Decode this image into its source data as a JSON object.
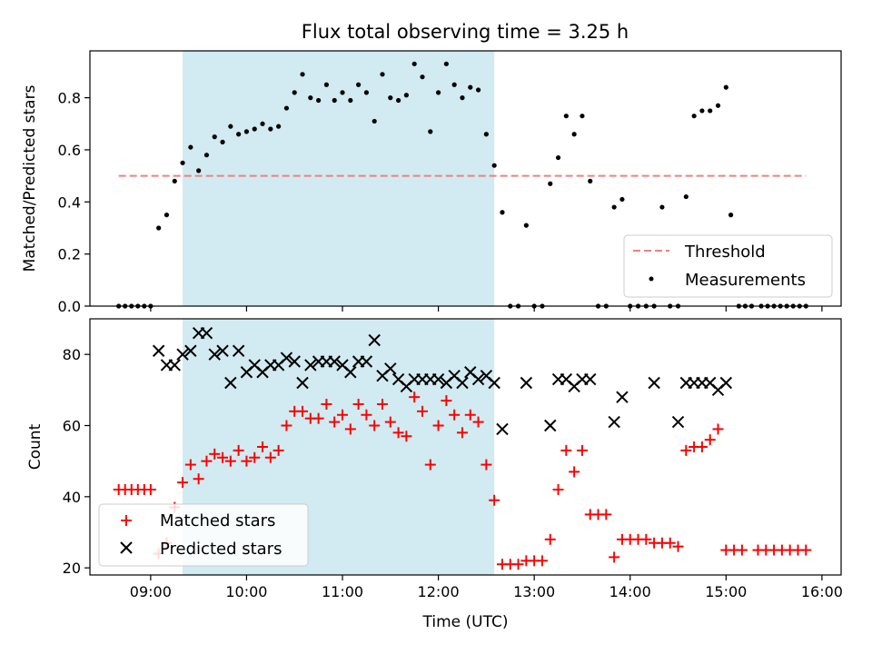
{
  "chart_data": [
    {
      "type": "scatter",
      "title": "Flux total observing time = 3.25 h",
      "ylabel": "Matched/Predicted stars",
      "xlabel": "",
      "xlim": [
        "08:22",
        "16:12"
      ],
      "ylim": [
        0,
        0.98
      ],
      "grid": false,
      "legend_position": "lower-right",
      "xticks": [
        "09:00",
        "10:00",
        "11:00",
        "12:00",
        "13:00",
        "14:00",
        "15:00",
        "16:00"
      ],
      "yticks": [
        "0.0",
        "0.2",
        "0.4",
        "0.6",
        "0.8"
      ],
      "shaded_span": {
        "start": "09:20",
        "end": "12:35",
        "color": "#add8e6"
      },
      "threshold": {
        "name": "Threshold",
        "value": 0.5,
        "start": "08:40",
        "end": "15:50",
        "color": "#f08080",
        "style": "dashed"
      },
      "series": [
        {
          "name": "Measurements",
          "color": "#000000",
          "marker": "dot",
          "points": [
            [
              "08:40",
              0
            ],
            [
              "08:44",
              0
            ],
            [
              "08:48",
              0
            ],
            [
              "08:52",
              0
            ],
            [
              "08:56",
              0
            ],
            [
              "09:00",
              0
            ],
            [
              "09:05",
              0.3
            ],
            [
              "09:10",
              0.35
            ],
            [
              "09:15",
              0.48
            ],
            [
              "09:20",
              0.55
            ],
            [
              "09:25",
              0.61
            ],
            [
              "09:30",
              0.52
            ],
            [
              "09:35",
              0.58
            ],
            [
              "09:40",
              0.65
            ],
            [
              "09:45",
              0.63
            ],
            [
              "09:50",
              0.69
            ],
            [
              "09:55",
              0.66
            ],
            [
              "10:00",
              0.67
            ],
            [
              "10:05",
              0.68
            ],
            [
              "10:10",
              0.7
            ],
            [
              "10:15",
              0.68
            ],
            [
              "10:20",
              0.69
            ],
            [
              "10:25",
              0.76
            ],
            [
              "10:30",
              0.82
            ],
            [
              "10:35",
              0.89
            ],
            [
              "10:40",
              0.8
            ],
            [
              "10:45",
              0.79
            ],
            [
              "10:50",
              0.85
            ],
            [
              "10:55",
              0.79
            ],
            [
              "11:00",
              0.82
            ],
            [
              "11:05",
              0.79
            ],
            [
              "11:10",
              0.85
            ],
            [
              "11:15",
              0.82
            ],
            [
              "11:20",
              0.71
            ],
            [
              "11:25",
              0.89
            ],
            [
              "11:30",
              0.8
            ],
            [
              "11:35",
              0.79
            ],
            [
              "11:40",
              0.81
            ],
            [
              "11:45",
              0.93
            ],
            [
              "11:50",
              0.88
            ],
            [
              "11:55",
              0.67
            ],
            [
              "12:00",
              0.82
            ],
            [
              "12:05",
              0.93
            ],
            [
              "12:10",
              0.85
            ],
            [
              "12:15",
              0.8
            ],
            [
              "12:20",
              0.84
            ],
            [
              "12:25",
              0.83
            ],
            [
              "12:30",
              0.66
            ],
            [
              "12:35",
              0.54
            ],
            [
              "12:40",
              0.36
            ],
            [
              "12:45",
              0
            ],
            [
              "12:50",
              0
            ],
            [
              "12:55",
              0.31
            ],
            [
              "13:00",
              0
            ],
            [
              "13:05",
              0
            ],
            [
              "13:10",
              0.47
            ],
            [
              "13:15",
              0.57
            ],
            [
              "13:20",
              0.73
            ],
            [
              "13:25",
              0.66
            ],
            [
              "13:30",
              0.73
            ],
            [
              "13:35",
              0.48
            ],
            [
              "13:40",
              0
            ],
            [
              "13:45",
              0
            ],
            [
              "13:50",
              0.38
            ],
            [
              "13:55",
              0.41
            ],
            [
              "14:00",
              0
            ],
            [
              "14:05",
              0
            ],
            [
              "14:10",
              0
            ],
            [
              "14:15",
              0
            ],
            [
              "14:20",
              0.38
            ],
            [
              "14:25",
              0
            ],
            [
              "14:30",
              0
            ],
            [
              "14:35",
              0.42
            ],
            [
              "14:40",
              0.73
            ],
            [
              "14:45",
              0.75
            ],
            [
              "14:50",
              0.75
            ],
            [
              "14:55",
              0.77
            ],
            [
              "15:00",
              0.84
            ],
            [
              "15:03",
              0.35
            ],
            [
              "15:08",
              0
            ],
            [
              "15:12",
              0
            ],
            [
              "15:16",
              0
            ],
            [
              "15:22",
              0
            ],
            [
              "15:26",
              0
            ],
            [
              "15:30",
              0
            ],
            [
              "15:34",
              0
            ],
            [
              "15:38",
              0
            ],
            [
              "15:42",
              0
            ],
            [
              "15:46",
              0
            ],
            [
              "15:50",
              0
            ]
          ]
        }
      ]
    },
    {
      "type": "scatter",
      "title": "",
      "xlabel": "Time (UTC)",
      "ylabel": "Count",
      "xlim": [
        "08:22",
        "16:12"
      ],
      "ylim": [
        18,
        90
      ],
      "grid": false,
      "legend_position": "lower-left",
      "xticks": [
        "09:00",
        "10:00",
        "11:00",
        "12:00",
        "13:00",
        "14:00",
        "15:00",
        "16:00"
      ],
      "yticks": [
        "20",
        "40",
        "60",
        "80"
      ],
      "shaded_span": {
        "start": "09:20",
        "end": "12:35",
        "color": "#add8e6"
      },
      "series": [
        {
          "name": "Matched stars",
          "color": "#ff0000",
          "marker": "plus",
          "points": [
            [
              "08:40",
              42
            ],
            [
              "08:44",
              42
            ],
            [
              "08:48",
              42
            ],
            [
              "08:52",
              42
            ],
            [
              "08:56",
              42
            ],
            [
              "09:00",
              42
            ],
            [
              "09:05",
              24
            ],
            [
              "09:10",
              27
            ],
            [
              "09:15",
              37
            ],
            [
              "09:20",
              44
            ],
            [
              "09:25",
              49
            ],
            [
              "09:30",
              45
            ],
            [
              "09:35",
              50
            ],
            [
              "09:40",
              52
            ],
            [
              "09:45",
              51
            ],
            [
              "09:50",
              50
            ],
            [
              "09:55",
              53
            ],
            [
              "10:00",
              50
            ],
            [
              "10:05",
              51
            ],
            [
              "10:10",
              54
            ],
            [
              "10:15",
              51
            ],
            [
              "10:20",
              53
            ],
            [
              "10:25",
              60
            ],
            [
              "10:30",
              64
            ],
            [
              "10:35",
              64
            ],
            [
              "10:40",
              62
            ],
            [
              "10:45",
              62
            ],
            [
              "10:50",
              66
            ],
            [
              "10:55",
              61
            ],
            [
              "11:00",
              63
            ],
            [
              "11:05",
              59
            ],
            [
              "11:10",
              66
            ],
            [
              "11:15",
              63
            ],
            [
              "11:20",
              60
            ],
            [
              "11:25",
              66
            ],
            [
              "11:30",
              61
            ],
            [
              "11:35",
              58
            ],
            [
              "11:40",
              57
            ],
            [
              "11:45",
              68
            ],
            [
              "11:50",
              64
            ],
            [
              "11:55",
              49
            ],
            [
              "12:00",
              60
            ],
            [
              "12:05",
              67
            ],
            [
              "12:10",
              63
            ],
            [
              "12:15",
              58
            ],
            [
              "12:20",
              63
            ],
            [
              "12:25",
              61
            ],
            [
              "12:30",
              49
            ],
            [
              "12:35",
              39
            ],
            [
              "12:40",
              21
            ],
            [
              "12:45",
              21
            ],
            [
              "12:50",
              21
            ],
            [
              "12:55",
              22
            ],
            [
              "13:00",
              22
            ],
            [
              "13:05",
              22
            ],
            [
              "13:10",
              28
            ],
            [
              "13:15",
              42
            ],
            [
              "13:20",
              53
            ],
            [
              "13:25",
              47
            ],
            [
              "13:30",
              53
            ],
            [
              "13:35",
              35
            ],
            [
              "13:40",
              35
            ],
            [
              "13:45",
              35
            ],
            [
              "13:50",
              23
            ],
            [
              "13:55",
              28
            ],
            [
              "14:00",
              28
            ],
            [
              "14:05",
              28
            ],
            [
              "14:10",
              28
            ],
            [
              "14:15",
              27
            ],
            [
              "14:20",
              27
            ],
            [
              "14:25",
              27
            ],
            [
              "14:30",
              26
            ],
            [
              "14:35",
              53
            ],
            [
              "14:40",
              54
            ],
            [
              "14:45",
              54
            ],
            [
              "14:50",
              56
            ],
            [
              "14:55",
              59
            ],
            [
              "15:00",
              25
            ],
            [
              "15:05",
              25
            ],
            [
              "15:10",
              25
            ],
            [
              "15:20",
              25
            ],
            [
              "15:25",
              25
            ],
            [
              "15:30",
              25
            ],
            [
              "15:35",
              25
            ],
            [
              "15:40",
              25
            ],
            [
              "15:45",
              25
            ],
            [
              "15:50",
              25
            ]
          ]
        },
        {
          "name": "Predicted stars",
          "color": "#000000",
          "marker": "x",
          "points": [
            [
              "09:05",
              81
            ],
            [
              "09:10",
              77
            ],
            [
              "09:15",
              77
            ],
            [
              "09:20",
              80
            ],
            [
              "09:25",
              81
            ],
            [
              "09:30",
              86
            ],
            [
              "09:35",
              86
            ],
            [
              "09:40",
              80
            ],
            [
              "09:45",
              81
            ],
            [
              "09:50",
              72
            ],
            [
              "09:55",
              81
            ],
            [
              "10:00",
              75
            ],
            [
              "10:05",
              77
            ],
            [
              "10:10",
              75
            ],
            [
              "10:15",
              77
            ],
            [
              "10:20",
              77
            ],
            [
              "10:25",
              79
            ],
            [
              "10:30",
              78
            ],
            [
              "10:35",
              72
            ],
            [
              "10:40",
              77
            ],
            [
              "10:45",
              78
            ],
            [
              "10:50",
              78
            ],
            [
              "10:55",
              78
            ],
            [
              "11:00",
              77
            ],
            [
              "11:05",
              75
            ],
            [
              "11:10",
              78
            ],
            [
              "11:15",
              78
            ],
            [
              "11:20",
              84
            ],
            [
              "11:25",
              74
            ],
            [
              "11:30",
              76
            ],
            [
              "11:35",
              73
            ],
            [
              "11:40",
              71
            ],
            [
              "11:45",
              73
            ],
            [
              "11:50",
              73
            ],
            [
              "11:55",
              73
            ],
            [
              "12:00",
              73
            ],
            [
              "12:05",
              72
            ],
            [
              "12:10",
              74
            ],
            [
              "12:15",
              72
            ],
            [
              "12:20",
              75
            ],
            [
              "12:25",
              73
            ],
            [
              "12:30",
              74
            ],
            [
              "12:35",
              72
            ],
            [
              "12:40",
              59
            ],
            [
              "12:55",
              72
            ],
            [
              "13:10",
              60
            ],
            [
              "13:15",
              73
            ],
            [
              "13:20",
              73
            ],
            [
              "13:25",
              71
            ],
            [
              "13:30",
              73
            ],
            [
              "13:35",
              73
            ],
            [
              "13:50",
              61
            ],
            [
              "13:55",
              68
            ],
            [
              "14:15",
              72
            ],
            [
              "14:30",
              61
            ],
            [
              "14:35",
              72
            ],
            [
              "14:40",
              72
            ],
            [
              "14:45",
              72
            ],
            [
              "14:50",
              72
            ],
            [
              "14:55",
              70
            ],
            [
              "15:00",
              72
            ]
          ]
        }
      ]
    }
  ]
}
